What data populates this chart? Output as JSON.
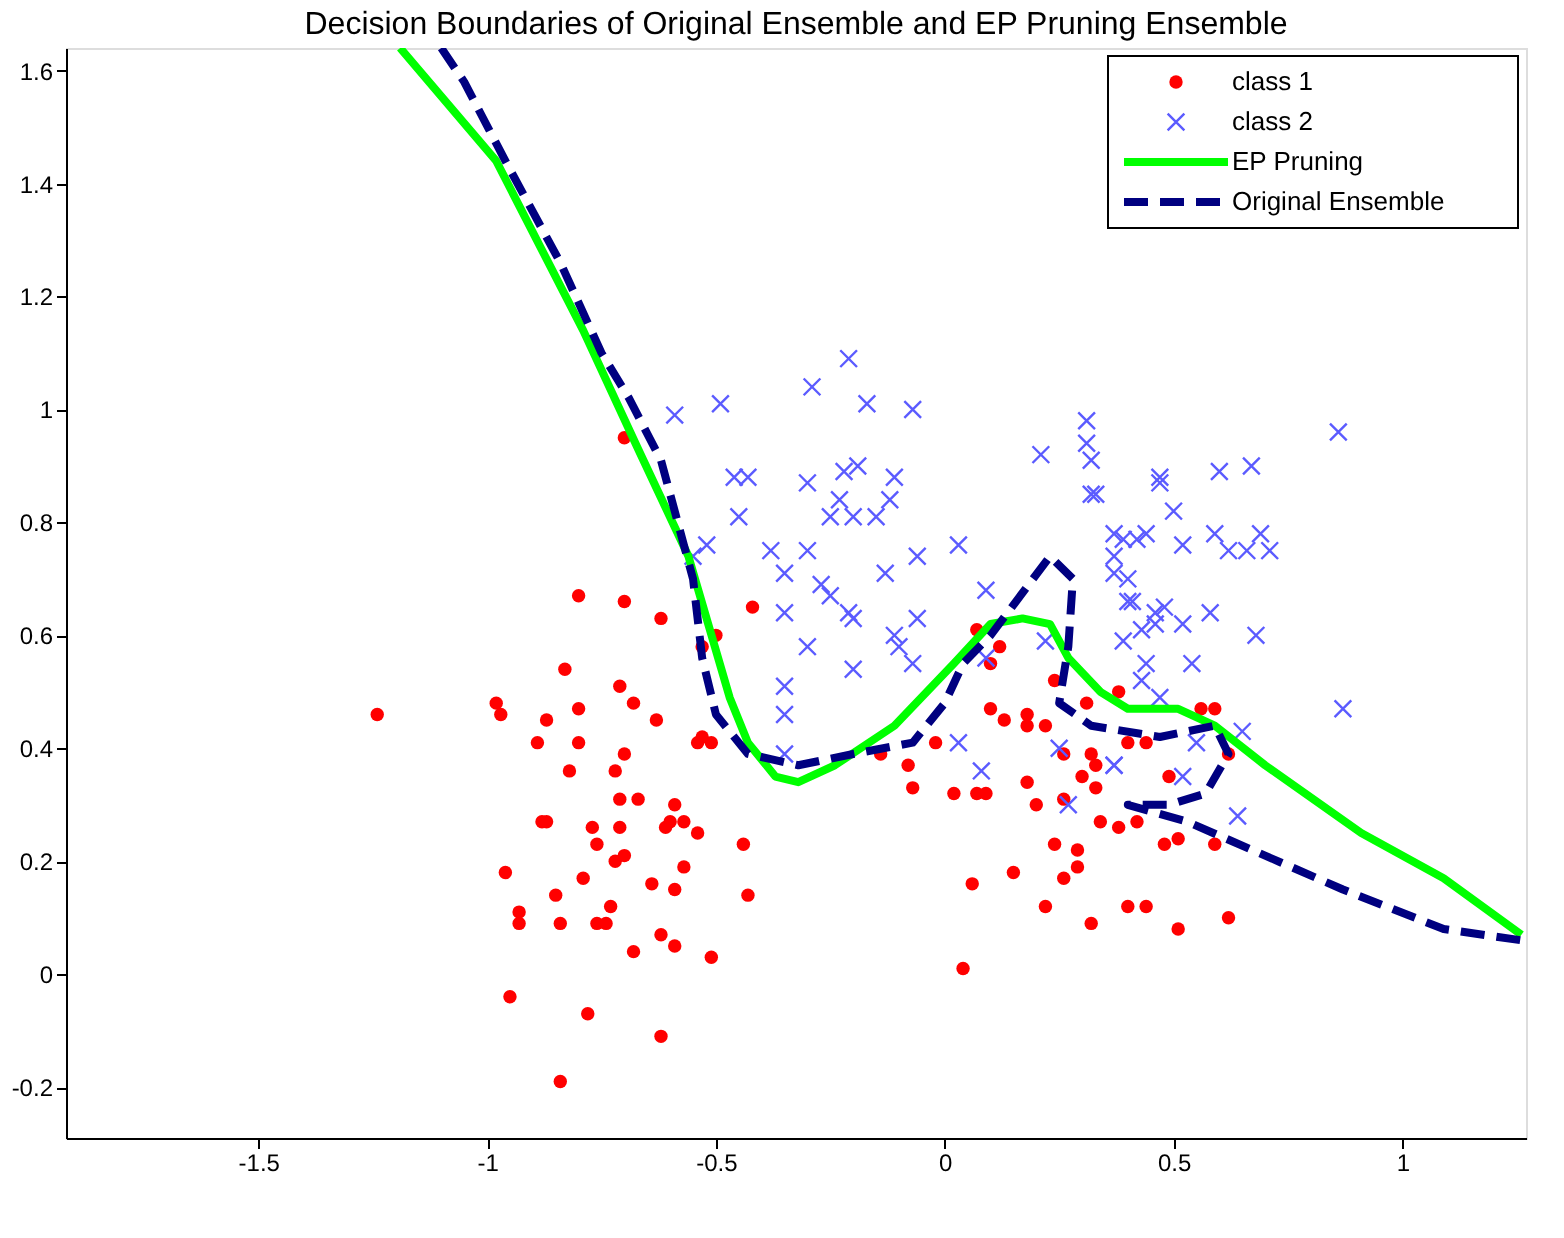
{
  "chart_data": {
    "type": "scatter",
    "title": "Decision Boundaries of Original Ensemble and EP Pruning Ensemble",
    "xlim": [
      -1.92,
      1.27
    ],
    "ylim": [
      -0.29,
      1.64
    ],
    "xticks": [
      -1.5,
      -1,
      -0.5,
      0,
      0.5,
      1
    ],
    "yticks": [
      -0.2,
      0,
      0.2,
      0.4,
      0.6,
      0.8,
      1,
      1.2,
      1.4,
      1.6
    ],
    "grid": false,
    "legend": "top right",
    "series": [
      {
        "name": "class 1",
        "marker": "circle",
        "color": "#ff0000",
        "x": [
          -0.8,
          -0.7,
          -0.62,
          -0.83,
          -0.71,
          -0.68,
          -0.63,
          -0.98,
          -0.97,
          -1.24,
          -0.87,
          -0.8,
          -0.89,
          -0.8,
          -0.7,
          -0.82,
          -0.72,
          -0.71,
          -0.67,
          -0.59,
          -0.88,
          -0.87,
          -0.77,
          -0.76,
          -0.71,
          -0.61,
          -0.57,
          -0.54,
          -0.6,
          -0.44,
          -0.96,
          -0.79,
          -0.72,
          -0.7,
          -0.57,
          -0.64,
          -0.59,
          -0.43,
          -0.85,
          -0.93,
          -0.93,
          -0.84,
          -0.76,
          -0.74,
          -0.73,
          -0.62,
          -0.59,
          -0.68,
          -0.51,
          -0.95,
          -0.78,
          -0.62,
          -0.84,
          -0.42,
          -0.5,
          -0.53,
          -0.53,
          -0.51,
          -0.54,
          -0.7,
          0.12,
          0.1,
          0.07,
          0.1,
          0.13,
          0.18,
          0.18,
          0.22,
          0.24,
          0.31,
          0.38,
          0.4,
          0.44,
          -0.02,
          -0.14,
          -0.08,
          -0.07,
          0.02,
          0.07,
          0.09,
          0.18,
          0.26,
          0.32,
          0.33,
          0.3,
          0.33,
          0.26,
          0.2,
          0.34,
          0.38,
          0.42,
          0.49,
          0.62,
          0.48,
          0.51,
          0.59,
          0.24,
          0.29,
          0.29,
          0.15,
          0.26,
          0.06,
          0.22,
          0.4,
          0.44,
          0.32,
          0.51,
          0.62,
          0.04,
          0.56,
          0.59
        ],
        "values": [
          0.67,
          0.66,
          0.63,
          0.54,
          0.51,
          0.48,
          0.45,
          0.48,
          0.46,
          0.46,
          0.45,
          0.47,
          0.41,
          0.41,
          0.39,
          0.36,
          0.36,
          0.31,
          0.31,
          0.3,
          0.27,
          0.27,
          0.26,
          0.23,
          0.26,
          0.26,
          0.27,
          0.25,
          0.27,
          0.23,
          0.18,
          0.17,
          0.2,
          0.21,
          0.19,
          0.16,
          0.15,
          0.14,
          0.14,
          0.11,
          0.09,
          0.09,
          0.09,
          0.09,
          0.12,
          0.07,
          0.05,
          0.04,
          0.03,
          -0.04,
          -0.07,
          -0.11,
          -0.19,
          0.65,
          0.6,
          0.58,
          0.42,
          0.41,
          0.41,
          0.95,
          0.58,
          0.55,
          0.61,
          0.47,
          0.45,
          0.46,
          0.44,
          0.44,
          0.52,
          0.48,
          0.5,
          0.41,
          0.41,
          0.41,
          0.39,
          0.37,
          0.33,
          0.32,
          0.32,
          0.32,
          0.34,
          0.39,
          0.39,
          0.37,
          0.35,
          0.33,
          0.31,
          0.3,
          0.27,
          0.26,
          0.27,
          0.35,
          0.39,
          0.23,
          0.24,
          0.23,
          0.23,
          0.22,
          0.19,
          0.18,
          0.17,
          0.16,
          0.12,
          0.12,
          0.12,
          0.09,
          0.08,
          0.1,
          0.01,
          0.47,
          0.47
        ]
      },
      {
        "name": "class 2",
        "marker": "cross",
        "color": "#5b5bff",
        "x": [
          -0.21,
          -0.29,
          -0.17,
          -0.07,
          0.21,
          0.31,
          0.31,
          0.32,
          0.32,
          0.47,
          -0.3,
          -0.22,
          -0.19,
          -0.11,
          -0.23,
          -0.12,
          -0.25,
          -0.2,
          -0.15,
          -0.3,
          -0.06,
          0.03,
          -0.13,
          -0.35,
          -0.27,
          -0.25,
          -0.21,
          -0.2,
          -0.06,
          -0.35,
          -0.3,
          -0.2,
          -0.11,
          -0.1,
          -0.07,
          0.09,
          0.09,
          -0.35,
          -0.35,
          -0.35,
          0.22,
          0.37,
          0.42,
          0.37,
          0.4,
          0.4,
          0.43,
          0.44,
          0.46,
          0.03,
          0.25,
          0.08,
          0.27,
          0.37,
          0.86,
          0.67,
          0.6,
          0.47,
          0.33,
          0.5,
          0.59,
          0.69,
          0.71,
          0.66,
          0.62,
          0.52,
          0.44,
          0.39,
          0.37,
          0.41,
          0.48,
          0.46,
          0.52,
          0.58,
          0.68,
          0.54,
          0.39,
          0.43,
          0.47,
          0.87,
          0.65,
          0.55,
          0.37,
          0.52,
          0.64,
          -0.59,
          -0.49,
          -0.46,
          -0.43,
          -0.45,
          -0.52,
          -0.55,
          -0.38
        ],
        "values": [
          1.09,
          1.04,
          1.01,
          1.0,
          0.92,
          0.98,
          0.94,
          0.91,
          0.85,
          0.88,
          0.87,
          0.89,
          0.9,
          0.88,
          0.84,
          0.84,
          0.81,
          0.81,
          0.81,
          0.75,
          0.74,
          0.76,
          0.71,
          0.71,
          0.69,
          0.67,
          0.64,
          0.63,
          0.63,
          0.64,
          0.58,
          0.54,
          0.6,
          0.58,
          0.55,
          0.68,
          0.56,
          0.51,
          0.46,
          0.39,
          0.59,
          0.78,
          0.77,
          0.74,
          0.7,
          0.66,
          0.61,
          0.55,
          0.64,
          0.41,
          0.4,
          0.36,
          0.3,
          0.37,
          0.96,
          0.9,
          0.89,
          0.87,
          0.85,
          0.82,
          0.78,
          0.78,
          0.75,
          0.75,
          0.75,
          0.76,
          0.78,
          0.77,
          0.71,
          0.66,
          0.65,
          0.62,
          0.62,
          0.64,
          0.6,
          0.55,
          0.59,
          0.52,
          0.49,
          0.47,
          0.43,
          0.41,
          0.37,
          0.35,
          0.28,
          0.99,
          1.01,
          0.88,
          0.88,
          0.81,
          0.76,
          0.74,
          0.75
        ]
      },
      {
        "name": "EP Pruning",
        "type": "line",
        "line_style": "solid",
        "color": "#00ff00",
        "x": [
          -1.19,
          -0.98,
          -0.79,
          -0.67,
          -0.56,
          -0.47,
          -0.43,
          -0.37,
          -0.32,
          -0.24,
          -0.11,
          0.02,
          0.1,
          0.17,
          0.23,
          0.27,
          0.34,
          0.4,
          0.51,
          0.59,
          0.7,
          0.91,
          1.09,
          1.26
        ],
        "values": [
          1.64,
          1.44,
          1.14,
          0.93,
          0.74,
          0.49,
          0.41,
          0.35,
          0.34,
          0.37,
          0.44,
          0.55,
          0.62,
          0.63,
          0.62,
          0.56,
          0.5,
          0.47,
          0.47,
          0.44,
          0.37,
          0.25,
          0.17,
          0.07
        ]
      },
      {
        "name": "Original Ensemble",
        "type": "line",
        "line_style": "dashed",
        "color": "#000080",
        "x": [
          -1.1,
          -1.05,
          -0.96,
          -0.84,
          -0.75,
          -0.69,
          -0.62,
          -0.58,
          -0.55,
          -0.53,
          -0.5,
          -0.43,
          -0.32,
          -0.2,
          -0.07,
          0.0,
          0.04,
          0.1,
          0.23,
          0.28,
          0.27,
          0.25,
          0.32,
          0.47,
          0.59,
          0.62,
          0.57,
          0.49,
          0.4,
          0.53,
          0.7,
          0.87,
          1.09,
          1.26
        ],
        "values": [
          1.64,
          1.58,
          1.44,
          1.26,
          1.1,
          1.02,
          0.91,
          0.79,
          0.7,
          0.56,
          0.46,
          0.39,
          0.37,
          0.39,
          0.41,
          0.48,
          0.55,
          0.6,
          0.74,
          0.7,
          0.58,
          0.48,
          0.44,
          0.42,
          0.44,
          0.39,
          0.32,
          0.3,
          0.3,
          0.27,
          0.21,
          0.15,
          0.08,
          0.06
        ]
      }
    ]
  }
}
